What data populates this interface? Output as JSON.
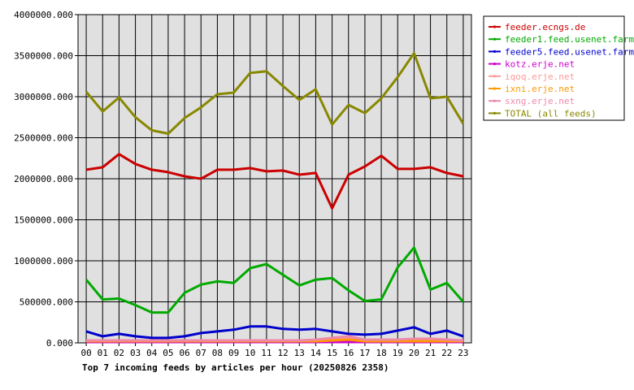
{
  "chart_data": {
    "type": "line",
    "title": "Top 7 incoming feeds by articles per hour (20250826 2358)",
    "categories": [
      "00",
      "01",
      "02",
      "03",
      "04",
      "05",
      "06",
      "07",
      "08",
      "09",
      "10",
      "11",
      "12",
      "13",
      "14",
      "15",
      "16",
      "17",
      "18",
      "19",
      "20",
      "21",
      "22",
      "23"
    ],
    "ylim": [
      0,
      4000000
    ],
    "y_ticks": [
      "0.000",
      "500000.000",
      "1000000.000",
      "1500000.000",
      "2000000.000",
      "2500000.000",
      "3000000.000",
      "3500000.000",
      "4000000.000"
    ],
    "grid": true,
    "legend_position": "top-right",
    "series": [
      {
        "name": "feeder.ecngs.de",
        "color": "#cc0000",
        "values": [
          2110000,
          2140000,
          2300000,
          2180000,
          2110000,
          2080000,
          2030000,
          2000000,
          2110000,
          2110000,
          2130000,
          2090000,
          2100000,
          2050000,
          2070000,
          1640000,
          2050000,
          2150000,
          2280000,
          2120000,
          2120000,
          2140000,
          2070000,
          2030000
        ]
      },
      {
        "name": "feeder1.feed.usenet.farm",
        "color": "#00aa00",
        "values": [
          770000,
          530000,
          540000,
          460000,
          370000,
          370000,
          610000,
          710000,
          750000,
          730000,
          910000,
          960000,
          830000,
          700000,
          770000,
          790000,
          640000,
          510000,
          530000,
          920000,
          1160000,
          650000,
          730000,
          500000
        ]
      },
      {
        "name": "feeder5.feed.usenet.farm",
        "color": "#0000cc",
        "values": [
          140000,
          80000,
          110000,
          80000,
          60000,
          60000,
          80000,
          120000,
          140000,
          160000,
          200000,
          200000,
          170000,
          160000,
          170000,
          140000,
          110000,
          100000,
          110000,
          150000,
          190000,
          110000,
          150000,
          80000
        ]
      },
      {
        "name": "kotz.erje.net",
        "color": "#cc00cc",
        "values": [
          10000,
          10000,
          10000,
          10000,
          10000,
          10000,
          10000,
          10000,
          10000,
          10000,
          10000,
          10000,
          10000,
          10000,
          10000,
          10000,
          10000,
          10000,
          10000,
          10000,
          10000,
          10000,
          10000,
          10000
        ]
      },
      {
        "name": "iqoq.erje.net",
        "color": "#ff9999",
        "values": [
          30000,
          30000,
          30000,
          30000,
          30000,
          30000,
          30000,
          30000,
          30000,
          30000,
          30000,
          30000,
          30000,
          30000,
          30000,
          50000,
          60000,
          30000,
          30000,
          30000,
          30000,
          30000,
          30000,
          30000
        ]
      },
      {
        "name": "ixni.erje.net",
        "color": "#ff9900",
        "values": [
          20000,
          20000,
          20000,
          20000,
          20000,
          20000,
          20000,
          20000,
          20000,
          20000,
          20000,
          20000,
          20000,
          20000,
          20000,
          30000,
          40000,
          20000,
          20000,
          20000,
          20000,
          20000,
          20000,
          20000
        ]
      },
      {
        "name": "sxng.erje.net",
        "color": "#ee88aa",
        "values": [
          30000,
          30000,
          30000,
          30000,
          30000,
          30000,
          30000,
          30000,
          30000,
          30000,
          30000,
          30000,
          30000,
          30000,
          40000,
          60000,
          80000,
          40000,
          40000,
          40000,
          50000,
          50000,
          40000,
          30000
        ]
      },
      {
        "name": "TOTAL (all feeds)",
        "color": "#888800",
        "values": [
          3060000,
          2820000,
          2990000,
          2750000,
          2590000,
          2550000,
          2740000,
          2870000,
          3030000,
          3050000,
          3290000,
          3310000,
          3130000,
          2960000,
          3090000,
          2660000,
          2900000,
          2800000,
          2980000,
          3240000,
          3530000,
          2980000,
          3000000,
          2670000
        ]
      }
    ]
  }
}
